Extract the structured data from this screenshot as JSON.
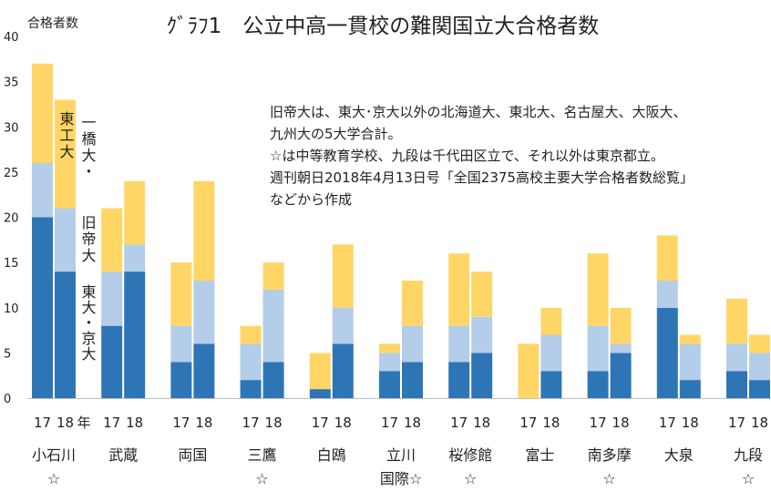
{
  "chart_data": {
    "type": "bar",
    "stacked": true,
    "title": "ｸﾞﾗﾌ1　公立中高一貫校の難関国立大合格者数",
    "ylabel": "合格者数",
    "ylim": [
      0,
      40
    ],
    "yticks": [
      0,
      5,
      10,
      15,
      20,
      25,
      30,
      35,
      40
    ],
    "year_unit_label": "年",
    "years": [
      "17",
      "18"
    ],
    "grid": false,
    "schools": [
      {
        "name": "小石川",
        "sub": "☆"
      },
      {
        "name": "武蔵",
        "sub": ""
      },
      {
        "name": "両国",
        "sub": ""
      },
      {
        "name": "三鷹",
        "sub": "☆"
      },
      {
        "name": "白鴎",
        "sub": ""
      },
      {
        "name": "立川",
        "sub": "国際☆"
      },
      {
        "name": "桜修館",
        "sub": "☆"
      },
      {
        "name": "富士",
        "sub": ""
      },
      {
        "name": "南多摩",
        "sub": "☆"
      },
      {
        "name": "大泉",
        "sub": ""
      },
      {
        "name": "九段",
        "sub": "☆"
      }
    ],
    "series": [
      {
        "name": "東大・京大",
        "color": "#2e75b6",
        "values": [
          [
            20,
            14
          ],
          [
            8,
            14
          ],
          [
            4,
            6
          ],
          [
            2,
            4
          ],
          [
            1,
            6
          ],
          [
            3,
            4
          ],
          [
            4,
            5
          ],
          [
            0,
            3
          ],
          [
            3,
            5
          ],
          [
            10,
            2
          ],
          [
            3,
            2
          ]
        ]
      },
      {
        "name": "旧帝大",
        "color": "#b4cde8",
        "values": [
          [
            6,
            7
          ],
          [
            6,
            3
          ],
          [
            4,
            7
          ],
          [
            4,
            8
          ],
          [
            0,
            4
          ],
          [
            2,
            4
          ],
          [
            4,
            4
          ],
          [
            0,
            4
          ],
          [
            5,
            1
          ],
          [
            3,
            4
          ],
          [
            3,
            3
          ]
        ]
      },
      {
        "name": "一橋大・東工大",
        "color": "#ffd666",
        "values": [
          [
            11,
            12
          ],
          [
            7,
            7
          ],
          [
            7,
            11
          ],
          [
            2,
            3
          ],
          [
            4,
            7
          ],
          [
            1,
            5
          ],
          [
            8,
            5
          ],
          [
            6,
            3
          ],
          [
            8,
            4
          ],
          [
            5,
            1
          ],
          [
            5,
            2
          ]
        ]
      }
    ],
    "legend_labels": {
      "top_a": "東工大",
      "top_b": "一橋大・",
      "mid": "旧帝大",
      "bottom": "東大・京大"
    },
    "notes": [
      "旧帝大は、東大･京大以外の北海道大、東北大、名古屋大、大阪大、",
      "九州大の5大学合計。",
      "☆は中等教育学校、九段は千代田区立で、それ以外は東京都立。",
      "週刊朝日2018年4月13日号「全国2375高校主要大学合格者数総覧」",
      "などから作成"
    ]
  }
}
